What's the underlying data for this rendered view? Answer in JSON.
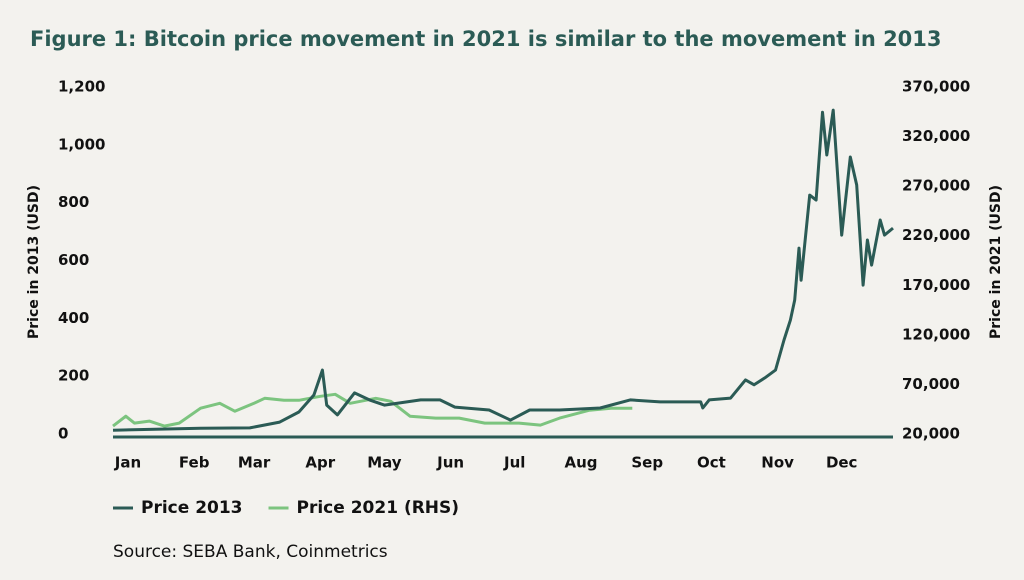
{
  "chart_data": {
    "type": "line",
    "title": "Figure 1: Bitcoin price movement in 2021 is similar to the movement in 2013",
    "ylabel": "Price in 2013 (USD)",
    "y2label": "Price in 2021 (USD)",
    "source": "Source: SEBA Bank, Coinmetrics",
    "xlim": [
      1,
      366
    ],
    "xticks": [
      {
        "value": 8,
        "label": "Jan"
      },
      {
        "value": 39,
        "label": "Feb"
      },
      {
        "value": 67,
        "label": "Mar"
      },
      {
        "value": 98,
        "label": "Apr"
      },
      {
        "value": 128,
        "label": "May"
      },
      {
        "value": 159,
        "label": "Jun"
      },
      {
        "value": 189,
        "label": "Jul"
      },
      {
        "value": 220,
        "label": "Aug"
      },
      {
        "value": 251,
        "label": "Sep"
      },
      {
        "value": 281,
        "label": "Oct"
      },
      {
        "value": 312,
        "label": "Nov"
      },
      {
        "value": 342,
        "label": "Dec"
      }
    ],
    "ylim": [
      0,
      1200
    ],
    "yticks": [
      0,
      200,
      400,
      600,
      800,
      {
        "value": 1000,
        "label": "1,000"
      },
      {
        "value": 1200,
        "label": "1,200"
      }
    ],
    "y2lim": [
      20000,
      370000
    ],
    "y2ticks": [
      {
        "value": 20000,
        "label": "20,000"
      },
      {
        "value": 70000,
        "label": "70,000"
      },
      {
        "value": 120000,
        "label": "120,000"
      },
      {
        "value": 170000,
        "label": "170,000"
      },
      {
        "value": 220000,
        "label": "220,000"
      },
      {
        "value": 270000,
        "label": "270,000"
      },
      {
        "value": 320000,
        "label": "320,000"
      },
      {
        "value": 370000,
        "label": "370,000"
      }
    ],
    "series": [
      {
        "name": "Price 2013",
        "color": "#2b5b55",
        "x": [
          1,
          42,
          65,
          79,
          88,
          95,
          99,
          101,
          106,
          114,
          121,
          128,
          145,
          154,
          161,
          177,
          187,
          196,
          210,
          229,
          243,
          257,
          276,
          277,
          280,
          290,
          297,
          301,
          306,
          311,
          315,
          318,
          320,
          322,
          323,
          327,
          330,
          333,
          335,
          338,
          342,
          346,
          349,
          352,
          354,
          356,
          360,
          362,
          366
        ],
        "values": [
          13,
          20,
          21,
          41,
          76,
          135,
          221,
          100,
          66,
          142,
          118,
          100,
          118,
          118,
          93,
          83,
          48,
          83,
          83,
          90,
          118,
          111,
          111,
          90,
          118,
          124,
          187,
          170,
          194,
          221,
          325,
          394,
          463,
          643,
          532,
          826,
          809,
          1113,
          965,
          1120,
          688,
          958,
          861,
          515,
          671,
          584,
          740,
          688,
          712
        ]
      },
      {
        "name": "Price 2021 (RHS)",
        "color": "#7cc47f",
        "axis": "y2",
        "x": [
          1,
          7,
          11,
          18,
          25,
          32,
          42,
          51,
          58,
          67,
          72,
          81,
          88,
          98,
          105,
          112,
          124,
          131,
          140,
          152,
          163,
          175,
          191,
          201,
          210,
          224,
          234,
          244
        ],
        "values": [
          28000,
          38000,
          31000,
          33000,
          28000,
          31000,
          46000,
          51000,
          43000,
          51000,
          56000,
          54000,
          54000,
          58000,
          60000,
          51000,
          56000,
          53000,
          38000,
          36000,
          36000,
          31000,
          31000,
          29000,
          36000,
          44000,
          46000,
          46000
        ]
      }
    ]
  }
}
